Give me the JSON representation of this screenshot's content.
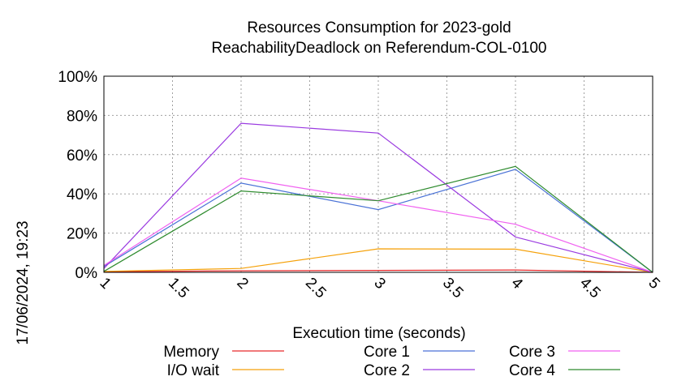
{
  "chart_data": {
    "type": "line",
    "title": "Resources Consumption for 2023-gold",
    "subtitle": "ReachabilityDeadlock on Referendum-COL-0100",
    "xlabel": "Execution time (seconds)",
    "ylabel": "",
    "timestamp": "17/06/2024, 19:23",
    "xlim": [
      1,
      5
    ],
    "ylim": [
      0,
      100
    ],
    "x_ticks": [
      "1",
      "1.5",
      "2",
      "2.5",
      "3",
      "3.5",
      "4",
      "4.5",
      "5"
    ],
    "y_ticks": [
      "0%",
      "20%",
      "40%",
      "60%",
      "80%",
      "100%"
    ],
    "grid": true,
    "legend_position": "bottom",
    "series": [
      {
        "name": "Memory",
        "color": "#e8292b",
        "x": [
          1,
          2,
          3,
          4,
          5
        ],
        "y": [
          0.3,
          0.8,
          1.0,
          1.2,
          0
        ]
      },
      {
        "name": "I/O wait",
        "color": "#f5a10a",
        "x": [
          1,
          2,
          3,
          4,
          5
        ],
        "y": [
          0.5,
          2.0,
          12.0,
          11.8,
          0
        ]
      },
      {
        "name": "Core 1",
        "color": "#4a72d6",
        "x": [
          1,
          2,
          3,
          4,
          5
        ],
        "y": [
          3.0,
          45.5,
          32.0,
          52.5,
          0
        ]
      },
      {
        "name": "Core 2",
        "color": "#9a3ae0",
        "x": [
          1,
          2,
          3,
          4,
          5
        ],
        "y": [
          2.0,
          76.0,
          71.0,
          18.0,
          0
        ]
      },
      {
        "name": "Core 3",
        "color": "#f060f0",
        "x": [
          1,
          2,
          3,
          4,
          5
        ],
        "y": [
          3.5,
          48.0,
          36.5,
          24.5,
          0
        ]
      },
      {
        "name": "Core 4",
        "color": "#2e8b2e",
        "x": [
          1,
          2,
          3,
          4,
          5
        ],
        "y": [
          0.5,
          41.5,
          36.5,
          54.0,
          0
        ]
      }
    ]
  }
}
